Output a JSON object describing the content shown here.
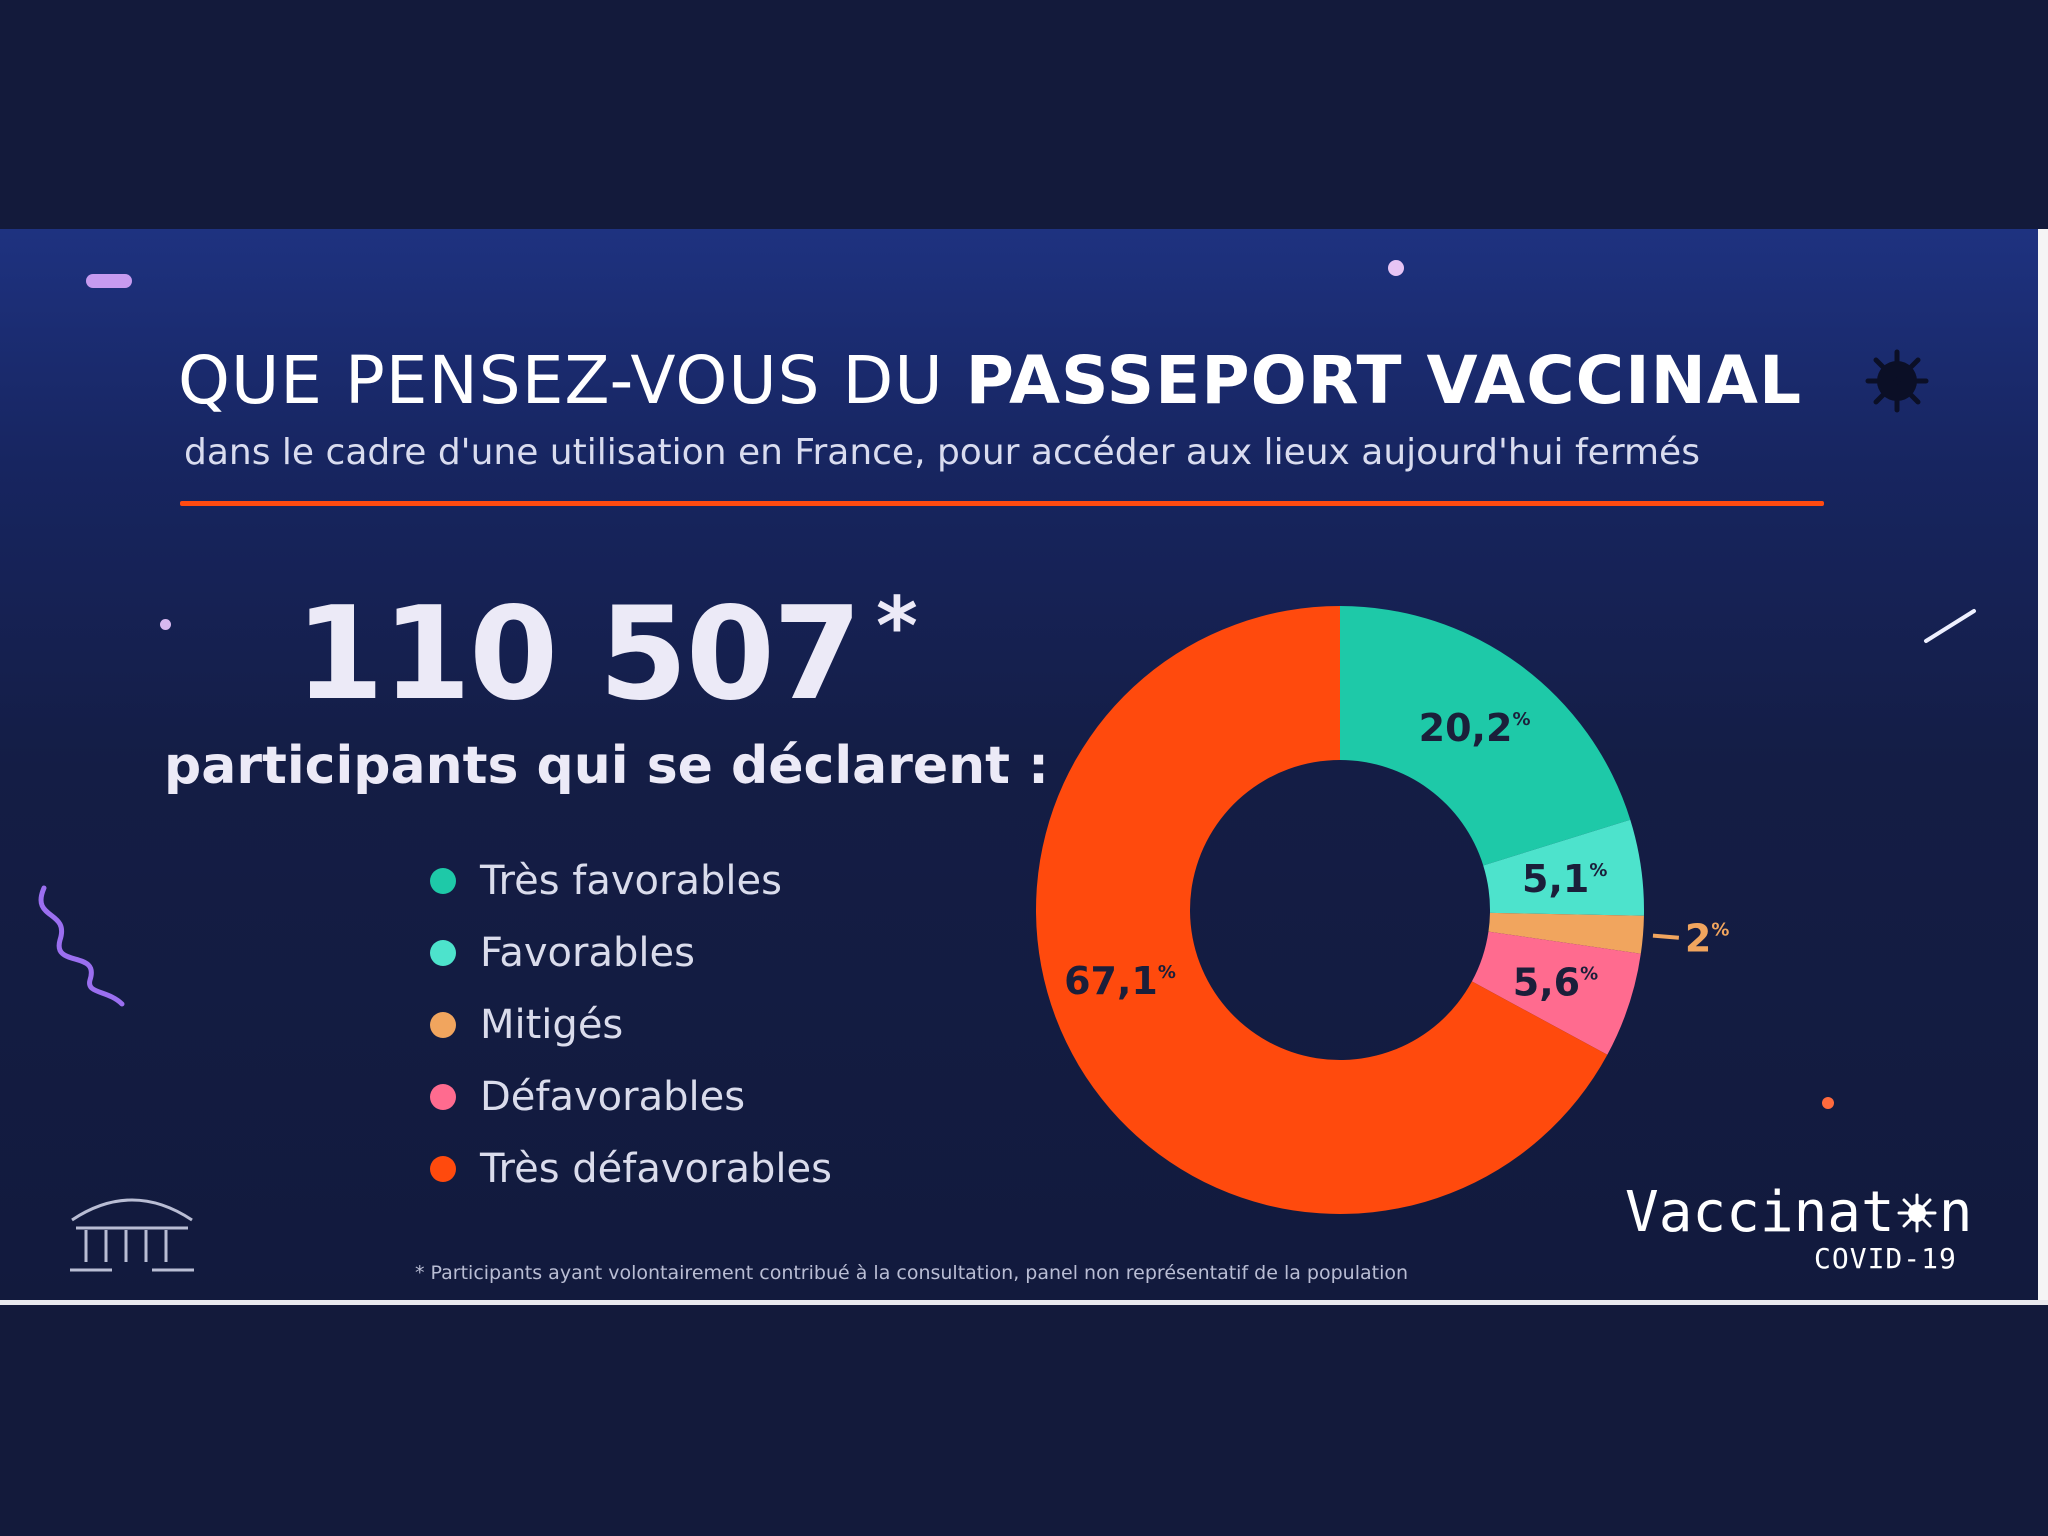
{
  "header": {
    "title_regular": "QUE PENSEZ-VOUS DU",
    "title_bold": "PASSEPORT VACCINAL",
    "subtitle": "dans le cadre d'une utilisation en France, pour accéder aux lieux aujourd'hui fermés"
  },
  "summary": {
    "count": "110 507",
    "count_mark": "*",
    "caption": "participants qui se déclarent :"
  },
  "chart_data": {
    "type": "pie",
    "donut": true,
    "categories": [
      "Très favorables",
      "Favorables",
      "Mitigés",
      "Défavorables",
      "Très défavorables"
    ],
    "values": [
      20.2,
      5.1,
      2,
      5.6,
      67.1
    ],
    "labels": [
      "20,2",
      "5,1",
      "2",
      "5,6",
      "67,1"
    ],
    "percent_sign": "%",
    "colors": [
      "#1ec9a8",
      "#4de3cc",
      "#f1a55e",
      "#ff6b8f",
      "#ff4a0d"
    ],
    "legend_position": "left"
  },
  "footnote": "* Participants ayant volontairement contribué à la consultation, panel non représentatif de la population",
  "brand": {
    "name": "Vaccinat",
    "name_end": "n",
    "sub": "COVID-19"
  },
  "colors": {
    "background": "#131a3b",
    "accent_rule": "#ff4a10",
    "text": "#eceaf7"
  }
}
